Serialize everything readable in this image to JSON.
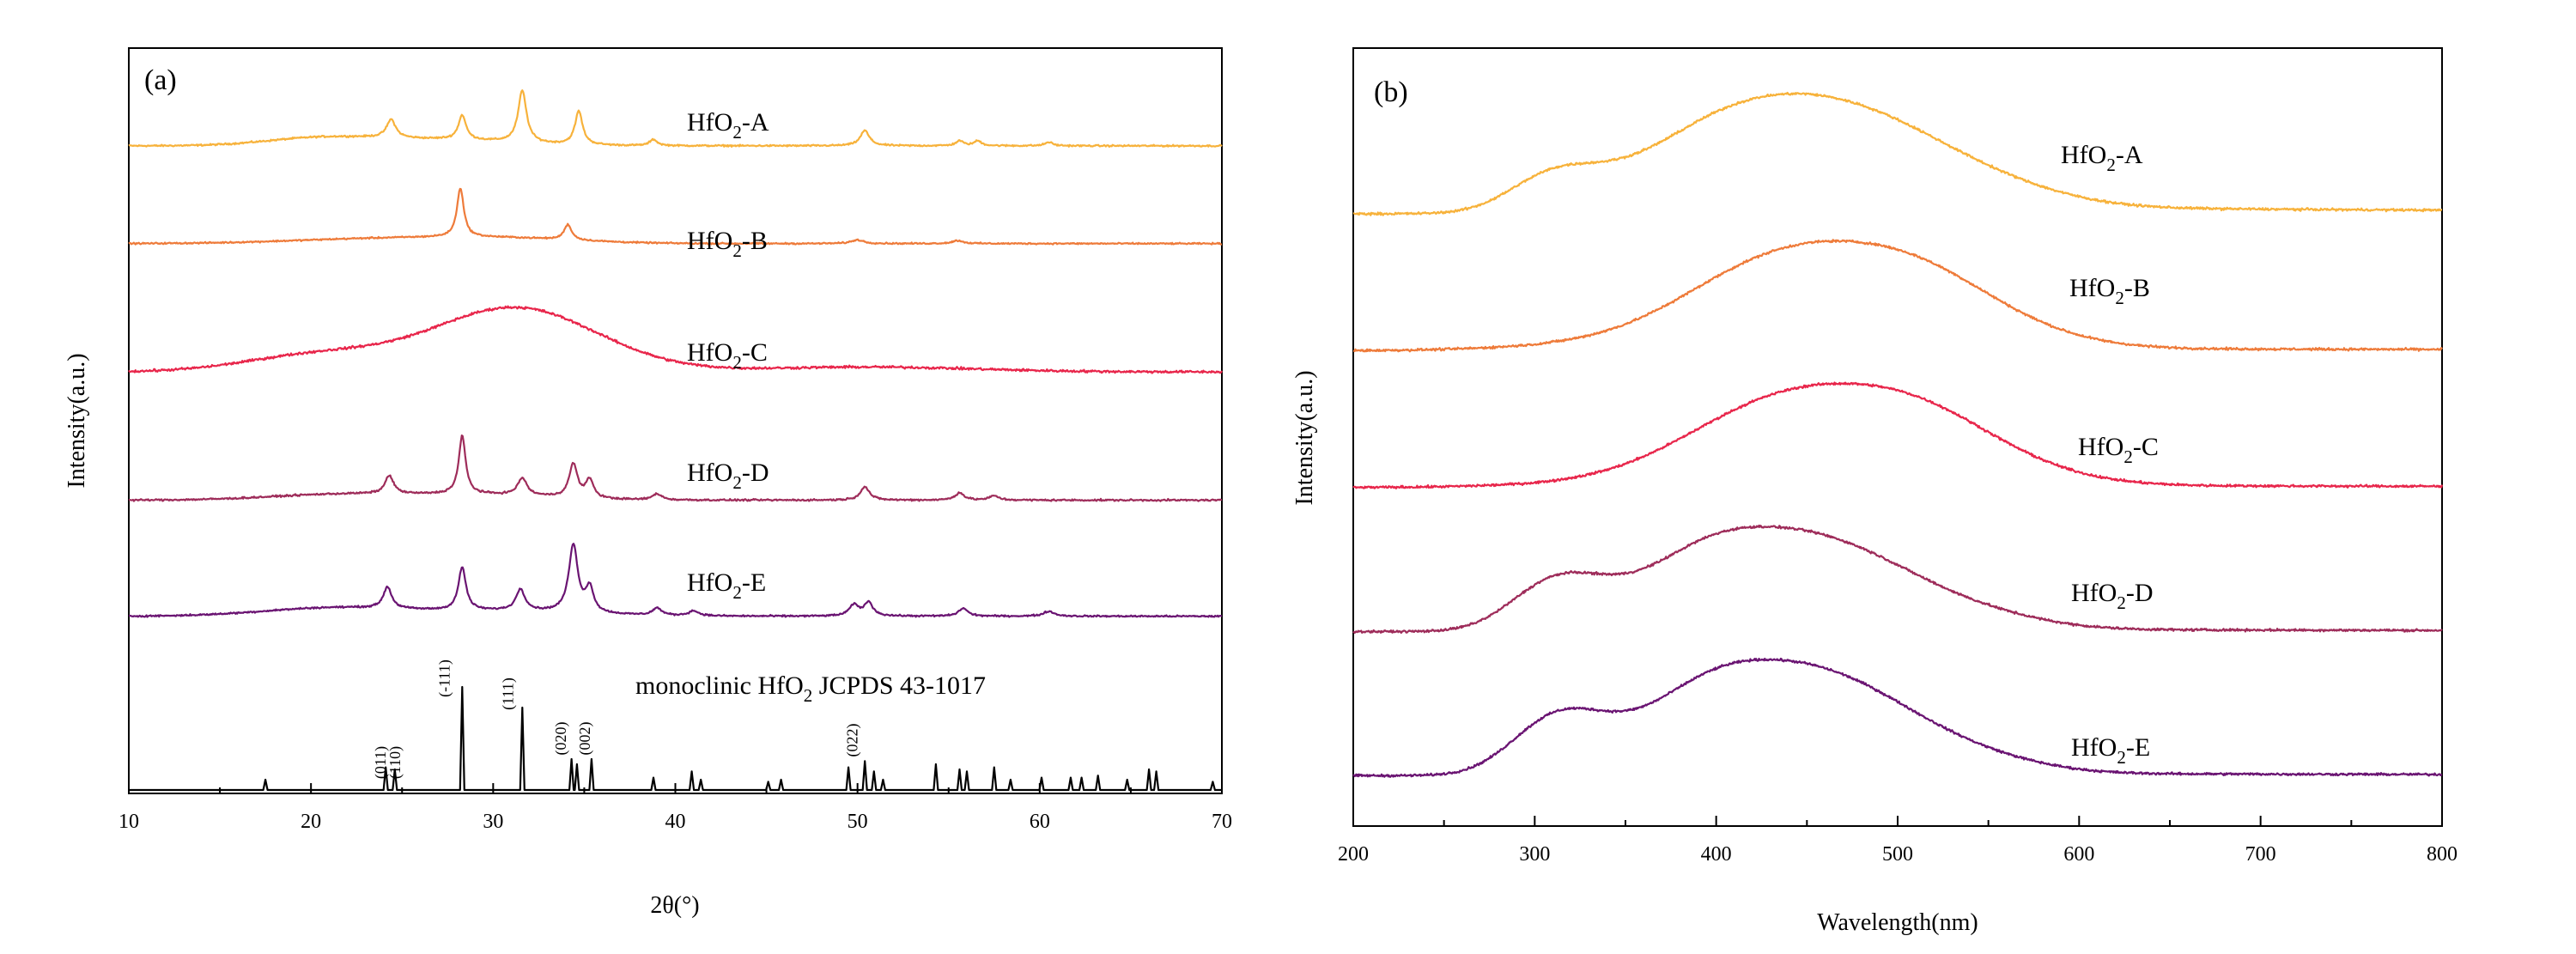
{
  "chart_data": [
    {
      "id": "a",
      "type": "line",
      "panel_label": "(a)",
      "title": "",
      "xlabel": "2θ(°)",
      "ylabel": "Intensity(a.u.)",
      "xlim": [
        10,
        70
      ],
      "xticks": [
        10,
        20,
        30,
        40,
        50,
        60,
        70
      ],
      "xtick_labels": [
        "10",
        "20",
        "30",
        "40",
        "50",
        "60",
        "70"
      ],
      "ylim": [
        0,
        6.1
      ],
      "yticks_shown": false,
      "series": [
        {
          "name": "HfO2-A",
          "label_main": "HfO",
          "label_sub": "2",
          "label_suffix": "-A",
          "color": "#F7B23B",
          "baseline": 5.3,
          "amplitude": 0.5,
          "noise": 0.02,
          "broad": [
            [
              20.5,
              3.0,
              0.12
            ],
            [
              27.0,
              4.0,
              0.1
            ]
          ],
          "peaks": [
            [
              24.4,
              0.6,
              0.3
            ],
            [
              28.3,
              0.5,
              0.4
            ],
            [
              31.6,
              0.55,
              0.85
            ],
            [
              34.7,
              0.5,
              0.55
            ],
            [
              38.8,
              0.5,
              0.1
            ],
            [
              50.4,
              0.6,
              0.25
            ],
            [
              55.6,
              0.5,
              0.08
            ],
            [
              56.6,
              0.5,
              0.08
            ],
            [
              60.5,
              0.5,
              0.06
            ]
          ]
        },
        {
          "name": "HfO2-B",
          "label_main": "HfO",
          "label_sub": "2",
          "label_suffix": "-B",
          "color": "#EE7B3A",
          "baseline": 4.5,
          "amplitude": 0.5,
          "noise": 0.018,
          "broad": [
            [
              24.0,
              5.0,
              0.08
            ],
            [
              31.0,
              4.0,
              0.07
            ]
          ],
          "peaks": [
            [
              28.2,
              0.45,
              0.8
            ],
            [
              34.1,
              0.5,
              0.25
            ],
            [
              50.0,
              0.8,
              0.06
            ],
            [
              55.5,
              0.7,
              0.05
            ]
          ]
        },
        {
          "name": "HfO2-C",
          "label_main": "HfO",
          "label_sub": "2",
          "label_suffix": "-C",
          "color": "#E8264B",
          "baseline": 3.45,
          "amplitude": 0.5,
          "noise": 0.03,
          "broad": [
            [
              20.5,
              4.0,
              0.28
            ],
            [
              31.2,
              4.5,
              1.05
            ],
            [
              50.5,
              6.0,
              0.08
            ]
          ],
          "peaks": []
        },
        {
          "name": "HfO2-D",
          "label_main": "HfO",
          "label_sub": "2",
          "label_suffix": "-D",
          "color": "#9E2C5A",
          "baseline": 2.4,
          "amplitude": 0.5,
          "noise": 0.022,
          "broad": [
            [
              22.0,
              4.0,
              0.1
            ],
            [
              30.0,
              3.5,
              0.08
            ]
          ],
          "peaks": [
            [
              24.3,
              0.55,
              0.3
            ],
            [
              28.3,
              0.45,
              0.95
            ],
            [
              31.6,
              0.6,
              0.28
            ],
            [
              34.4,
              0.55,
              0.55
            ],
            [
              35.3,
              0.5,
              0.3
            ],
            [
              39.0,
              0.6,
              0.1
            ],
            [
              50.4,
              0.6,
              0.22
            ],
            [
              55.6,
              0.6,
              0.12
            ],
            [
              57.5,
              0.6,
              0.07
            ]
          ]
        },
        {
          "name": "HfO2-E",
          "label_main": "HfO",
          "label_sub": "2",
          "label_suffix": "-E",
          "color": "#6A1472",
          "baseline": 1.45,
          "amplitude": 0.5,
          "noise": 0.02,
          "broad": [
            [
              21.5,
              4.0,
              0.14
            ],
            [
              31.0,
              4.0,
              0.08
            ]
          ],
          "peaks": [
            [
              24.2,
              0.55,
              0.35
            ],
            [
              28.3,
              0.5,
              0.7
            ],
            [
              31.5,
              0.6,
              0.35
            ],
            [
              34.4,
              0.6,
              1.1
            ],
            [
              35.3,
              0.5,
              0.4
            ],
            [
              39.0,
              0.6,
              0.12
            ],
            [
              41.0,
              0.7,
              0.08
            ],
            [
              49.8,
              0.6,
              0.18
            ],
            [
              50.6,
              0.6,
              0.22
            ],
            [
              55.8,
              0.6,
              0.13
            ],
            [
              60.5,
              0.7,
              0.08
            ]
          ]
        }
      ],
      "reference": {
        "name": "monoclinic HfO2 JCPDS 43-1017",
        "label_main": "monoclinic HfO",
        "label_sub": "2",
        "label_suffix": " JCPDS 43-1017",
        "color": "#000000",
        "baseline": 0.0,
        "sticks": [
          [
            17.5,
            0.1
          ],
          [
            24.1,
            0.22
          ],
          [
            24.6,
            0.2
          ],
          [
            28.3,
            1.0
          ],
          [
            31.6,
            0.8
          ],
          [
            34.3,
            0.3
          ],
          [
            34.6,
            0.25
          ],
          [
            35.4,
            0.3
          ],
          [
            38.8,
            0.12
          ],
          [
            40.9,
            0.18
          ],
          [
            41.4,
            0.1
          ],
          [
            45.1,
            0.08
          ],
          [
            45.8,
            0.1
          ],
          [
            49.5,
            0.22
          ],
          [
            50.4,
            0.28
          ],
          [
            50.9,
            0.18
          ],
          [
            51.4,
            0.1
          ],
          [
            54.3,
            0.25
          ],
          [
            55.6,
            0.2
          ],
          [
            56.0,
            0.18
          ],
          [
            57.5,
            0.22
          ],
          [
            58.4,
            0.1
          ],
          [
            60.1,
            0.12
          ],
          [
            61.7,
            0.12
          ],
          [
            62.3,
            0.12
          ],
          [
            63.2,
            0.14
          ],
          [
            64.8,
            0.1
          ],
          [
            66.0,
            0.2
          ],
          [
            66.4,
            0.18
          ],
          [
            69.5,
            0.08
          ]
        ],
        "hkl_labels": [
          {
            "text": "(011)",
            "x": 24.1
          },
          {
            "text": "(110)",
            "x": 24.9
          },
          {
            "text": "(-111)",
            "x": 27.6
          },
          {
            "text": "(111)",
            "x": 31.1
          },
          {
            "text": "(020)",
            "x": 34.0
          },
          {
            "text": "(002)",
            "x": 35.3
          },
          {
            "text": "(022)",
            "x": 50.0
          }
        ]
      }
    },
    {
      "id": "b",
      "type": "line",
      "panel_label": "(b)",
      "title": "",
      "xlabel": "Wavelength(nm)",
      "ylabel": "Intensity(a.u.)",
      "xlim": [
        200,
        800
      ],
      "xticks": [
        200,
        300,
        400,
        500,
        600,
        700,
        800
      ],
      "xtick_labels": [
        "200",
        "300",
        "400",
        "500",
        "600",
        "700",
        "800"
      ],
      "ylim": [
        0,
        5.4
      ],
      "yticks_shown": false,
      "series": [
        {
          "name": "HfO2-A",
          "label_main": "HfO",
          "label_sub": "2",
          "label_suffix": "-A",
          "color": "#F7B23B",
          "baseline": 4.25,
          "amplitude": 1.0,
          "noise": 0.012,
          "tail": 0.06,
          "bands": [
            [
              305,
              22,
              0.18
            ],
            [
              330,
              25,
              0.1
            ],
            [
              390,
              40,
              0.2
            ],
            [
              440,
              55,
              0.58
            ],
            [
              500,
              45,
              0.25
            ],
            [
              560,
              40,
              0.08
            ]
          ]
        },
        {
          "name": "HfO2-B",
          "label_main": "HfO",
          "label_sub": "2",
          "label_suffix": "-B",
          "color": "#EE7B3A",
          "baseline": 3.3,
          "amplitude": 1.0,
          "noise": 0.012,
          "tail": 0.02,
          "bands": [
            [
              320,
              45,
              0.03
            ],
            [
              410,
              45,
              0.22
            ],
            [
              465,
              55,
              0.55
            ],
            [
              520,
              40,
              0.22
            ],
            [
              570,
              40,
              0.05
            ]
          ]
        },
        {
          "name": "HfO2-C",
          "label_main": "HfO",
          "label_sub": "2",
          "label_suffix": "-C",
          "color": "#E8264B",
          "baseline": 2.35,
          "amplitude": 1.0,
          "noise": 0.012,
          "tail": 0.02,
          "bands": [
            [
              320,
              45,
              0.02
            ],
            [
              410,
              45,
              0.2
            ],
            [
              465,
              55,
              0.52
            ],
            [
              520,
              40,
              0.22
            ],
            [
              570,
              40,
              0.05
            ]
          ]
        },
        {
          "name": "HfO2-D",
          "label_main": "HfO",
          "label_sub": "2",
          "label_suffix": "-D",
          "color": "#9E2C5A",
          "baseline": 1.35,
          "amplitude": 1.0,
          "noise": 0.012,
          "tail": 0.02,
          "bands": [
            [
              305,
              22,
              0.25
            ],
            [
              330,
              22,
              0.15
            ],
            [
              385,
              35,
              0.3
            ],
            [
              435,
              45,
              0.5
            ],
            [
              490,
              40,
              0.25
            ],
            [
              550,
              35,
              0.07
            ]
          ]
        },
        {
          "name": "HfO2-E",
          "label_main": "HfO",
          "label_sub": "2",
          "label_suffix": "-E",
          "color": "#6A1472",
          "baseline": 0.35,
          "amplitude": 1.0,
          "noise": 0.012,
          "tail": 0.02,
          "bands": [
            [
              305,
              22,
              0.28
            ],
            [
              330,
              22,
              0.18
            ],
            [
              385,
              35,
              0.32
            ],
            [
              435,
              45,
              0.56
            ],
            [
              490,
              40,
              0.28
            ],
            [
              550,
              35,
              0.07
            ]
          ]
        }
      ]
    }
  ]
}
